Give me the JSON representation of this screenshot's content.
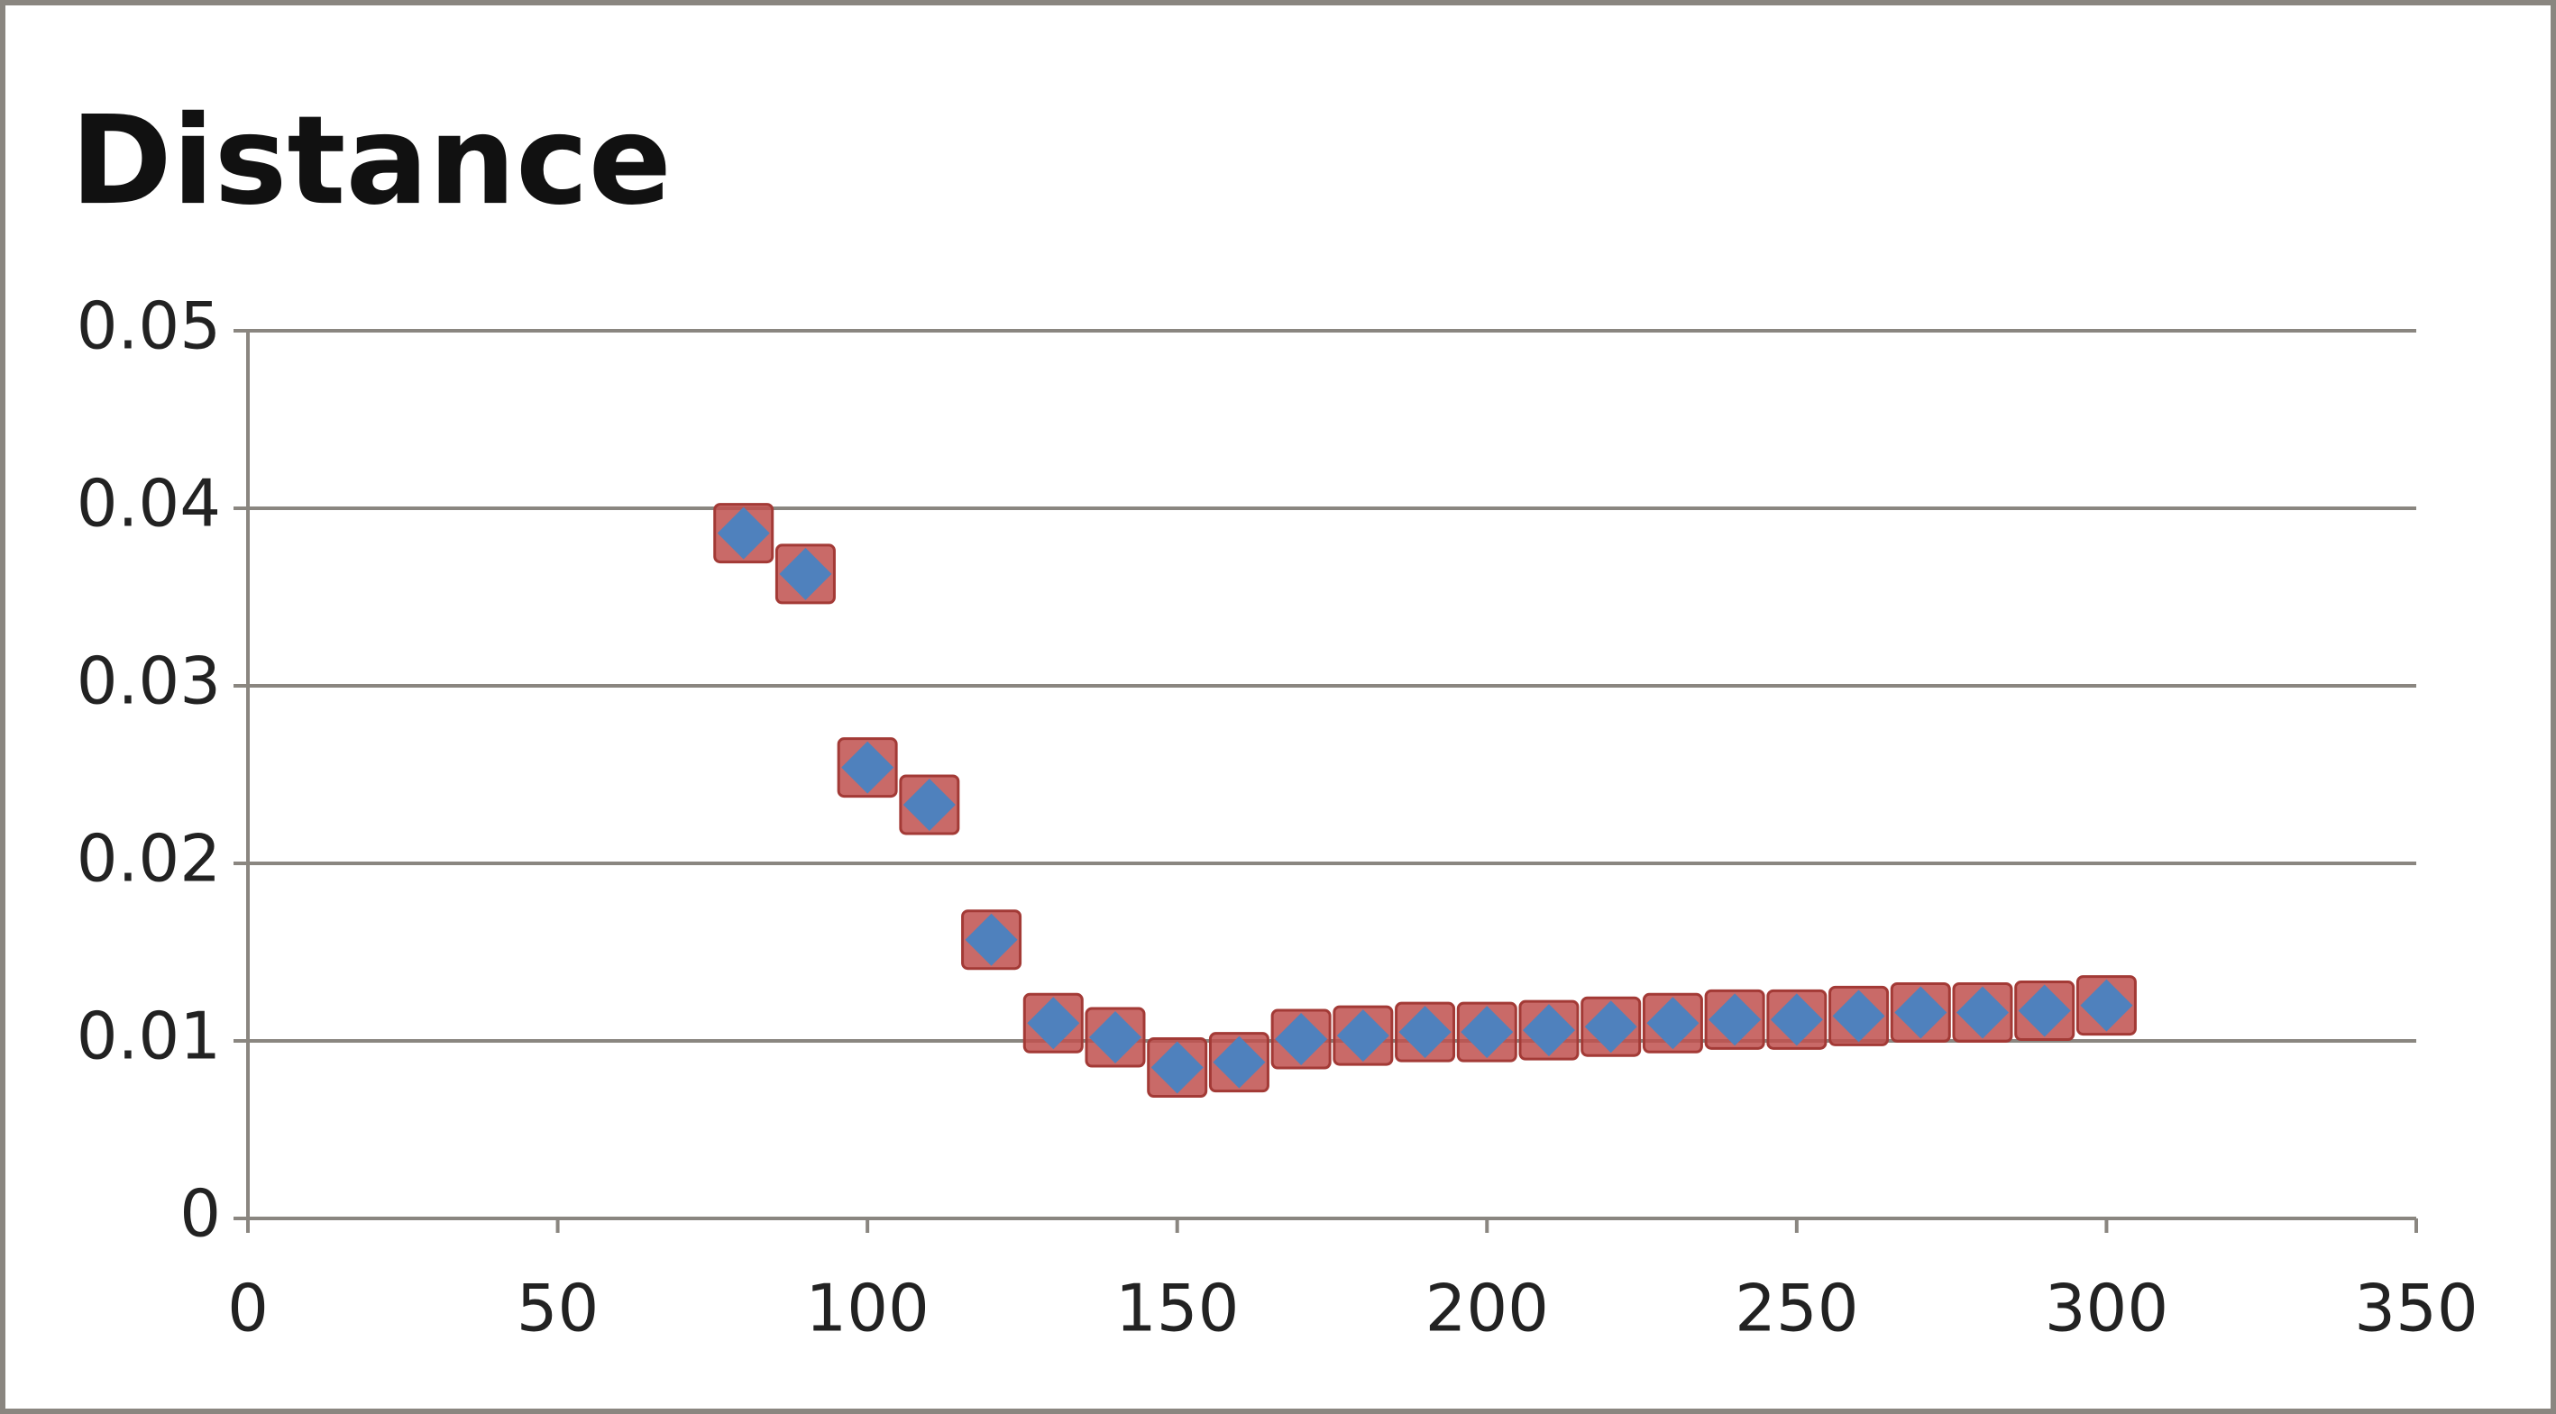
{
  "chart_data": {
    "type": "scatter",
    "title": "Distance",
    "x": [
      80,
      90,
      100,
      110,
      120,
      130,
      140,
      150,
      160,
      170,
      180,
      190,
      200,
      210,
      220,
      230,
      240,
      250,
      260,
      270,
      280,
      290,
      300
    ],
    "series": [
      {
        "color": "#c0504d",
        "marker": "square",
        "values": [
          0.0386,
          0.0363,
          0.0254,
          0.0233,
          0.0157,
          0.011,
          0.0102,
          0.0085,
          0.0088,
          0.0101,
          0.0103,
          0.0105,
          0.0105,
          0.0106,
          0.0108,
          0.011,
          0.0112,
          0.0112,
          0.0114,
          0.0116,
          0.0116,
          0.0117,
          0.012
        ]
      },
      {
        "color": "#4f81bd",
        "marker": "diamond",
        "values": [
          0.0386,
          0.0363,
          0.0254,
          0.0233,
          0.0157,
          0.011,
          0.0102,
          0.0085,
          0.0088,
          0.0101,
          0.0103,
          0.0105,
          0.0105,
          0.0106,
          0.0108,
          0.011,
          0.0112,
          0.0112,
          0.0114,
          0.0116,
          0.0116,
          0.0117,
          0.012
        ]
      }
    ],
    "xlim": [
      0,
      350
    ],
    "xticks": [
      0,
      50,
      100,
      150,
      200,
      250,
      300,
      350
    ],
    "ylim": [
      0,
      0.05
    ],
    "yticks": [
      0,
      0.01,
      0.02,
      0.03,
      0.04,
      0.05
    ],
    "grid": true
  }
}
